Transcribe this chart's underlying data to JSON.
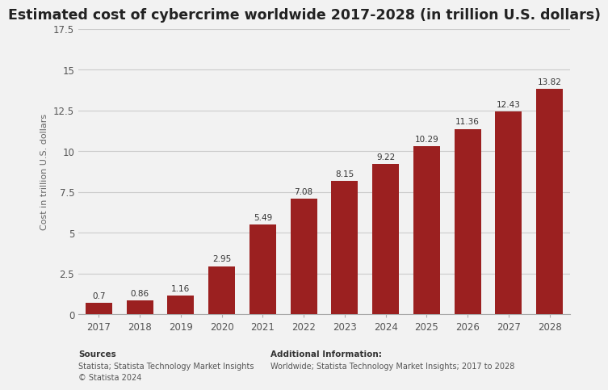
{
  "title": "Estimated cost of cybercrime worldwide 2017-2028 (in trillion U.S. dollars)",
  "years": [
    "2017",
    "2018",
    "2019",
    "2020",
    "2021",
    "2022",
    "2023",
    "2024",
    "2025",
    "2026",
    "2027",
    "2028"
  ],
  "values": [
    0.7,
    0.86,
    1.16,
    2.95,
    5.49,
    7.08,
    8.15,
    9.22,
    10.29,
    11.36,
    12.43,
    13.82
  ],
  "bar_color": "#9b2020",
  "ylabel": "Cost in trillion U.S. dollars",
  "ylim": [
    0,
    17.5
  ],
  "yticks": [
    0,
    2.5,
    5,
    7.5,
    10,
    12.5,
    15,
    17.5
  ],
  "background_color": "#f2f2f2",
  "plot_background_color": "#f2f2f2",
  "title_fontsize": 12.5,
  "label_fontsize": 7.5,
  "ylabel_fontsize": 8,
  "tick_fontsize": 8.5,
  "sources_bold": "Sources",
  "sources_line2": "Statista; Statista Technology Market Insights",
  "sources_line3": "© Statista 2024",
  "additional_bold": "Additional Information:",
  "additional_line2": "Worldwide; Statista Technology Market Insights; 2017 to 2028"
}
